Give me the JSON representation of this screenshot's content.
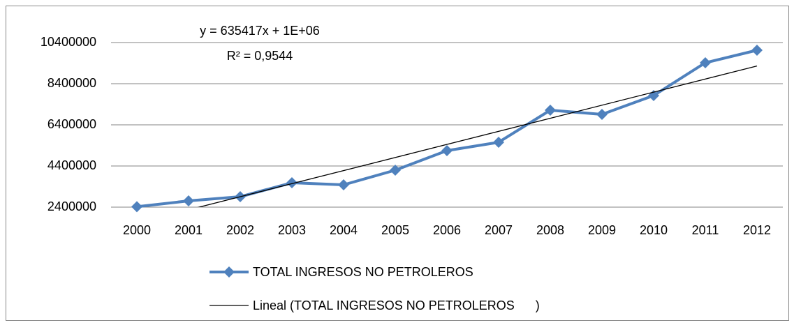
{
  "chart_data": {
    "type": "line",
    "categories": [
      "2000",
      "2001",
      "2002",
      "2003",
      "2004",
      "2005",
      "2006",
      "2007",
      "2008",
      "2009",
      "2010",
      "2011",
      "2012"
    ],
    "series": [
      {
        "name": "TOTAL INGRESOS NO PETROLEROS",
        "color": "#4f81bd",
        "values": [
          2420000,
          2705000,
          2908000,
          3586000,
          3485000,
          4197000,
          5146000,
          5553000,
          7112000,
          6908000,
          7824000,
          9417000,
          10027000
        ]
      }
    ],
    "trendline": {
      "name": "Lineal (TOTAL INGRESOS NO PETROLEROS      )",
      "color": "#000000",
      "slope": 635417,
      "intercept": 1000000,
      "equation": "y = 635417x + 1E+06",
      "r_squared": "R² = 0,9544"
    },
    "ylim": [
      2400000,
      10400000
    ],
    "yticks": [
      2400000,
      4400000,
      6400000,
      8400000,
      10400000
    ],
    "grid": true,
    "legend": "bottom"
  }
}
